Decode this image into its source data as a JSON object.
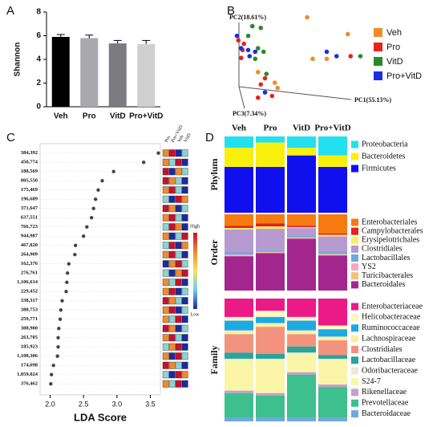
{
  "chart_data": [
    {
      "type": "bar",
      "panel_label": "A",
      "y_label": "Shannon",
      "categories": [
        "Veh",
        "Pro",
        "VitD",
        "Pro+VitD"
      ],
      "values": [
        5.9,
        5.8,
        5.35,
        5.3
      ],
      "errors": [
        0.2,
        0.25,
        0.25,
        0.3
      ],
      "colors": [
        "#000000",
        "#a9a9ad",
        "#7b7b80",
        "#cfcfd1"
      ],
      "ylim": [
        0,
        8
      ],
      "yticks": [
        0,
        2,
        4,
        6,
        8
      ]
    },
    {
      "type": "scatter3d",
      "panel_label": "B",
      "x_label": "PC1(55.13%)",
      "y_label": "PC2(18.61%)",
      "z_label": "PC3(7.34%)",
      "xlim": [
        0,
        100
      ],
      "ylim": [
        0,
        100
      ],
      "series": [
        {
          "name": "Veh",
          "color": "#f28c28",
          "x": [
            56,
            85,
            60,
            70,
            33,
            35,
            21
          ],
          "y": [
            94,
            75,
            47,
            47,
            20,
            14,
            32
          ]
        },
        {
          "name": "Pro",
          "color": "#e8231d",
          "x": [
            7,
            10,
            9,
            26,
            23,
            31,
            21,
            87,
            11
          ],
          "y": [
            68,
            57,
            48,
            25,
            18,
            5,
            3,
            50,
            64
          ]
        },
        {
          "name": "VitD",
          "color": "#2a8a2a",
          "x": [
            17,
            23,
            14,
            21,
            25,
            19,
            94,
            27
          ],
          "y": [
            84,
            82,
            73,
            59,
            55,
            47,
            50,
            30
          ]
        },
        {
          "name": "Pro+VitD",
          "color": "#1a2fe0",
          "x": [
            6,
            9,
            14,
            19,
            70,
            77,
            26,
            15
          ],
          "y": [
            73,
            59,
            57,
            55,
            55,
            50,
            9,
            50
          ]
        }
      ]
    },
    {
      "type": "lda",
      "panel_label": "C",
      "x_label": "LDA Score",
      "categories": [
        "384,392",
        "450,774",
        "188,569",
        "805,550",
        "175,469",
        "196,689",
        "371,647",
        "637,551",
        "766,723",
        "944,987",
        "467,820",
        "264,909",
        "162,376",
        "276,761",
        "1,106,614",
        "229,452",
        "338,317",
        "380,753",
        "259,771",
        "308,900",
        "263,705",
        "185,923",
        "1,108,306",
        "174,698",
        "1,059,024",
        "376,462"
      ],
      "values": [
        3.62,
        3.4,
        2.95,
        2.78,
        2.72,
        2.68,
        2.65,
        2.62,
        2.55,
        2.5,
        2.38,
        2.37,
        2.28,
        2.26,
        2.25,
        2.24,
        2.18,
        2.16,
        2.15,
        2.13,
        2.12,
        2.12,
        2.11,
        2.05,
        2.02,
        2.01
      ],
      "xlim": [
        1.85,
        3.65
      ],
      "xticks": [
        {
          "value": 2,
          "label": "2.0"
        },
        2.5,
        {
          "value": 3,
          "label": "3.0"
        },
        3.5
      ],
      "heatmap": {
        "columns": [
          "Pro",
          "Pro+VitD",
          "Veh",
          "VitD"
        ],
        "colormap": [
          "#1b2a9c",
          "#6ecff0",
          "#f7e15a",
          "#f08a2a",
          "#c8102e"
        ],
        "colorbar_labels": [
          "High",
          "Low"
        ],
        "values": [
          [
            0.75,
            1,
            0,
            0.3
          ],
          [
            0.75,
            0.3,
            1,
            0
          ],
          [
            1,
            0,
            0.75,
            0.3
          ],
          [
            1,
            0.75,
            0.3,
            0
          ],
          [
            0.75,
            1,
            0.3,
            0
          ],
          [
            0.3,
            0,
            1,
            0.75
          ],
          [
            1,
            0.75,
            0,
            0.3
          ],
          [
            0.75,
            1,
            0.3,
            0
          ],
          [
            0.3,
            1,
            0.75,
            0
          ],
          [
            0.75,
            0,
            0.3,
            1
          ],
          [
            0.3,
            1,
            0,
            0.75
          ],
          [
            0.75,
            1,
            0.3,
            0
          ],
          [
            0,
            0.75,
            1,
            0.3
          ],
          [
            0.3,
            0,
            0.75,
            1
          ],
          [
            0.75,
            0.3,
            1,
            0
          ],
          [
            0.75,
            1,
            0,
            0.3
          ],
          [
            1,
            0.75,
            0.3,
            0
          ],
          [
            0.75,
            1,
            0,
            0.3
          ],
          [
            0.75,
            0.3,
            1,
            0
          ],
          [
            1,
            0.75,
            0,
            0.3
          ],
          [
            0.75,
            1,
            0.3,
            0
          ],
          [
            0.3,
            0.75,
            1,
            0
          ],
          [
            0.75,
            0,
            1,
            0.3
          ],
          [
            1,
            0.75,
            0.3,
            0
          ],
          [
            0.3,
            0,
            1,
            0.75
          ],
          [
            0.75,
            0.3,
            1,
            0
          ]
        ]
      }
    },
    {
      "type": "stacked_bar",
      "panel_label": "D",
      "categories": [
        "Veh",
        "Pro",
        "VitD",
        "Pro+VitD"
      ],
      "panels": [
        {
          "label": "Phylum",
          "series": [
            {
              "name": "Proteobacteria",
              "color": "#22e0f0",
              "values": [
                15,
                8,
                15,
                25
              ]
            },
            {
              "name": "Bacteroidetes",
              "color": "#f8f00c",
              "values": [
                25,
                32,
                10,
                15
              ]
            },
            {
              "name": "Firmicutes",
              "color": "#1010ee",
              "values": [
                60,
                60,
                75,
                60
              ]
            }
          ]
        },
        {
          "label": "Order",
          "series": [
            {
              "name": "Enterobacteriales",
              "color": "#f57a12",
              "values": [
                15,
                12,
                15,
                25
              ]
            },
            {
              "name": "Campylobacterales",
              "color": "#e5201c",
              "values": [
                3,
                4,
                2,
                2
              ]
            },
            {
              "name": "Erysipelotrichales",
              "color": "#f8f060",
              "values": [
                2,
                3,
                1,
                2
              ]
            },
            {
              "name": "Clostridiales",
              "color": "#b79ad0",
              "values": [
                30,
                28,
                10,
                20
              ]
            },
            {
              "name": "Lactobacillales",
              "color": "#6fa8dc",
              "values": [
                3,
                2,
                2,
                3
              ]
            },
            {
              "name": "YS2",
              "color": "#f7a8c4",
              "values": [
                1,
                1,
                1,
                1
              ]
            },
            {
              "name": "Turicibacterales",
              "color": "#f2c27c",
              "values": [
                1,
                1,
                1,
                1
              ]
            },
            {
              "name": "Bacteroidales",
              "color": "#a3268f",
              "values": [
                45,
                49,
                68,
                46
              ]
            }
          ]
        },
        {
          "label": "Family",
          "series": [
            {
              "name": "Enterobacteriaceae",
              "color": "#ec1a86",
              "values": [
                15,
                10,
                15,
                22
              ]
            },
            {
              "name": "Helicobacteraceae",
              "color": "#fdf7c0",
              "values": [
                3,
                5,
                3,
                3
              ]
            },
            {
              "name": "Ruminococcaceae",
              "color": "#1ea9e6",
              "values": [
                8,
                5,
                8,
                6
              ]
            },
            {
              "name": "Lachnospiraceae",
              "color": "#fdf0a5",
              "values": [
                3,
                3,
                3,
                3
              ]
            },
            {
              "name": "Clostridiales",
              "color": "#f4937d",
              "values": [
                15,
                22,
                10,
                12
              ]
            },
            {
              "name": "Lactobacillaceae",
              "color": "#2aa39a",
              "values": [
                5,
                4,
                5,
                3
              ]
            },
            {
              "name": "Odoribacteraceae",
              "color": "#e9e9d5",
              "values": [
                1,
                1,
                1,
                1
              ]
            },
            {
              "name": "S24-7",
              "color": "#fbf5a8",
              "values": [
                25,
                27,
                15,
                20
              ]
            },
            {
              "name": "Rikenellaceae",
              "color": "#c49fcd",
              "values": [
                2,
                2,
                2,
                2
              ]
            },
            {
              "name": "Prevotellaceae",
              "color": "#3dbf8e",
              "values": [
                20,
                18,
                35,
                25
              ]
            },
            {
              "name": "Bacteroidaceae",
              "color": "#6fa8dc",
              "values": [
                3,
                3,
                3,
                3
              ]
            }
          ]
        }
      ]
    }
  ]
}
